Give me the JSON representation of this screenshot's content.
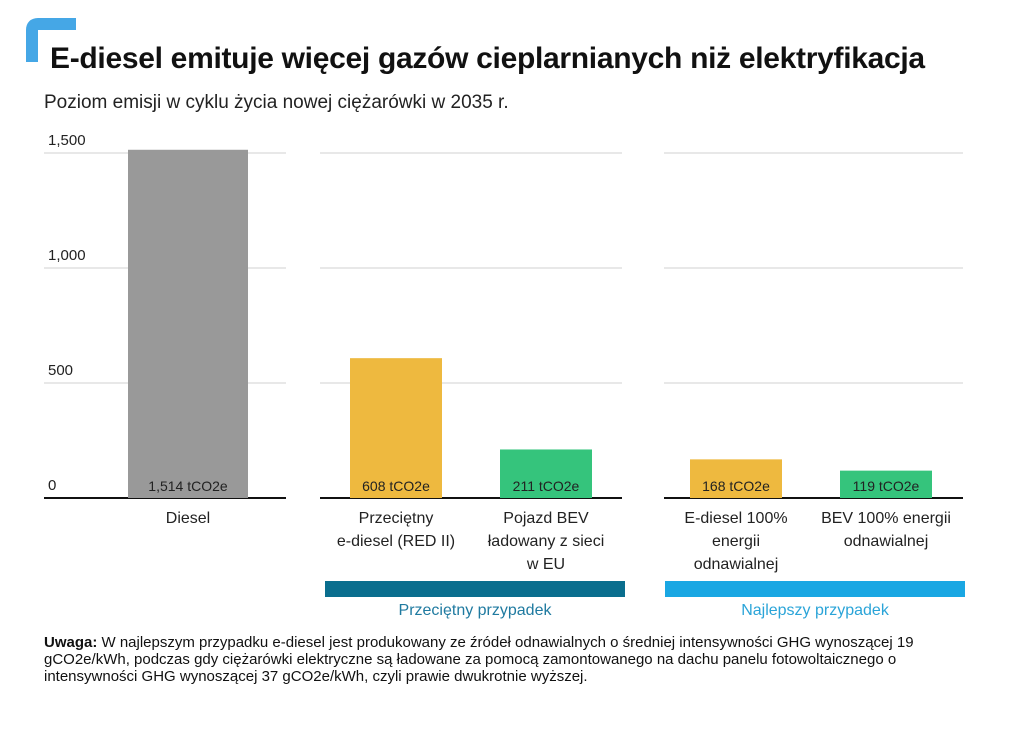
{
  "title": "E-diesel emituje więcej gazów cieplarnianych niż elektryfikacja",
  "subtitle": "Poziom emisji w cyklu życia nowej ciężarówki w 2035 r.",
  "colors": {
    "logo": "#45a7e6",
    "diesel": "#999999",
    "ediesel": "#eeb93f",
    "bev": "#35c47c",
    "gridline": "#d0d0d0",
    "baseline": "#111111",
    "group_average": "#0a6e8e",
    "group_best": "#1aa7e3",
    "group_average_text": "#1f7aa0",
    "group_best_text": "#2aa4d8"
  },
  "chart_data": {
    "type": "bar",
    "ylim": [
      0,
      1500
    ],
    "yticks": [
      {
        "value": 0,
        "label": "0"
      },
      {
        "value": 500,
        "label": "500"
      },
      {
        "value": 1000,
        "label": "1,000"
      },
      {
        "value": 1500,
        "label": "1,500"
      }
    ],
    "grid": true,
    "unit_suffix": "tCO2e",
    "categories": [
      {
        "label_lines": [
          "Diesel"
        ],
        "value": 1514,
        "data_label": "1,514 tCO2e",
        "color_key": "diesel"
      },
      {
        "label_lines": [
          "Przeciętny",
          "e-diesel (RED II)"
        ],
        "value": 608,
        "data_label": "608 tCO2e",
        "color_key": "ediesel"
      },
      {
        "label_lines": [
          "Pojazd BEV",
          "ładowany z sieci",
          "w EU"
        ],
        "value": 211,
        "data_label": "211 tCO2e",
        "color_key": "bev"
      },
      {
        "label_lines": [
          "E-diesel 100%",
          "energii",
          "odnawialnej"
        ],
        "value": 168,
        "data_label": "168 tCO2e",
        "color_key": "ediesel"
      },
      {
        "label_lines": [
          "BEV 100% energii",
          "odnawialnej"
        ],
        "value": 119,
        "data_label": "119 tCO2e",
        "color_key": "bev"
      }
    ],
    "groups": [
      {
        "label": "Przeciętny przypadek",
        "color_key": "group_average",
        "text_color_key": "group_average_text"
      },
      {
        "label": "Najlepszy przypadek",
        "color_key": "group_best",
        "text_color_key": "group_best_text"
      }
    ]
  },
  "note": {
    "label": "Uwaga:",
    "text": " W najlepszym przypadku e-diesel jest produkowany ze źródeł odnawialnych o średniej intensywności GHG wynoszącej 19 gCO2e/kWh, podczas gdy ciężarówki elektryczne są ładowane za pomocą zamontowanego na dachu panelu fotowoltaicznego o intensywności GHG wynoszącej 37 gCO2e/kWh, czyli prawie dwukrotnie wyższej."
  }
}
